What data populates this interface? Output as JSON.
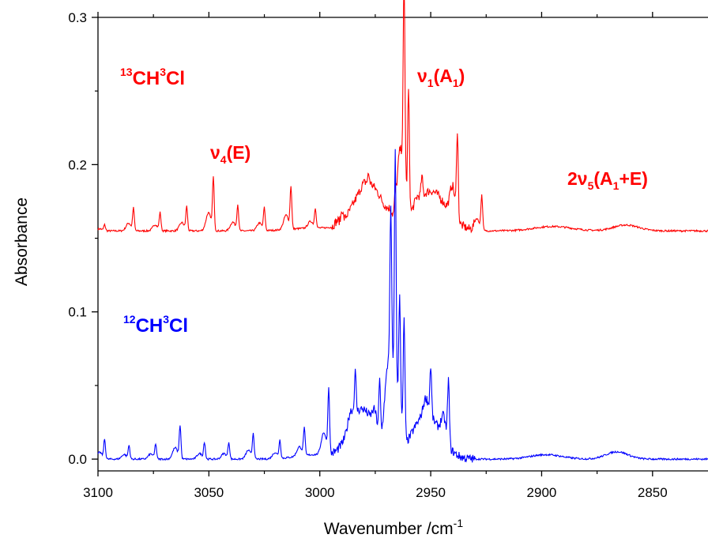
{
  "chart_data": {
    "type": "line",
    "title": "",
    "xlabel": "Wavenumber /cm",
    "xlabel_sup": "-1",
    "ylabel": "Absorbance",
    "xlim": [
      3100,
      2825
    ],
    "ylim": [
      -0.008,
      0.3
    ],
    "x_reversed": true,
    "x_ticks": [
      3100,
      3050,
      3000,
      2950,
      2900,
      2850
    ],
    "x_tick_labels": [
      "3100",
      "3050",
      "3000",
      "2950",
      "2900",
      "2850"
    ],
    "y_ticks": [
      0.0,
      0.1,
      0.2,
      0.3
    ],
    "y_tick_labels": [
      "0.0",
      "0.1",
      "0.2",
      "0.3"
    ],
    "grid": false,
    "series": [
      {
        "name": "13CH3Cl",
        "color": "#ff0000",
        "baseline": 0.155,
        "peaks": [
          {
            "x": 3097,
            "y": 0.159
          },
          {
            "x": 3084,
            "y": 0.17
          },
          {
            "x": 3072,
            "y": 0.167
          },
          {
            "x": 3060,
            "y": 0.171
          },
          {
            "x": 3048,
            "y": 0.19
          },
          {
            "x": 3037,
            "y": 0.172
          },
          {
            "x": 3025,
            "y": 0.17
          },
          {
            "x": 3013,
            "y": 0.183
          },
          {
            "x": 3002,
            "y": 0.168
          },
          {
            "x": 2990,
            "y": 0.163
          },
          {
            "x": 2978,
            "y": 0.161
          },
          {
            "x": 2966,
            "y": 0.167
          },
          {
            "x": 2954,
            "y": 0.168
          },
          {
            "x": 2938,
            "y": 0.214
          },
          {
            "x": 2962,
            "y": 0.284
          },
          {
            "x": 2960,
            "y": 0.236
          },
          {
            "x": 2927,
            "y": 0.178
          }
        ]
      },
      {
        "name": "12CH3Cl",
        "color": "#0000ff",
        "baseline": 0.0,
        "peaks": [
          {
            "x": 3097,
            "y": 0.013
          },
          {
            "x": 3086,
            "y": 0.009
          },
          {
            "x": 3074,
            "y": 0.01
          },
          {
            "x": 3063,
            "y": 0.022
          },
          {
            "x": 3052,
            "y": 0.011
          },
          {
            "x": 3041,
            "y": 0.011
          },
          {
            "x": 3030,
            "y": 0.017
          },
          {
            "x": 3018,
            "y": 0.012
          },
          {
            "x": 3007,
            "y": 0.018
          },
          {
            "x": 2996,
            "y": 0.043
          },
          {
            "x": 2984,
            "y": 0.028
          },
          {
            "x": 2973,
            "y": 0.037
          },
          {
            "x": 2962,
            "y": 0.082
          },
          {
            "x": 2942,
            "y": 0.043
          },
          {
            "x": 2966,
            "y": 0.165
          },
          {
            "x": 2968,
            "y": 0.098
          },
          {
            "x": 2964,
            "y": 0.074
          },
          {
            "x": 2950,
            "y": 0.033
          }
        ]
      }
    ],
    "annotations": [
      {
        "text": "CH",
        "pre_sup": "13",
        "mid_sup": "3",
        "post": "Cl",
        "color": "#ff0000"
      },
      {
        "text": "ν",
        "sub": "4",
        "post": "(E)",
        "color": "#ff0000"
      },
      {
        "text": "ν",
        "sub": "1",
        "post": "(A",
        "sub2": "1",
        "post2": ")",
        "color": "#ff0000"
      },
      {
        "text": "2ν",
        "sub": "5",
        "post": "(A",
        "sub2": "1",
        "post2": "+E)",
        "color": "#ff0000"
      },
      {
        "text": "CH",
        "pre_sup": "12",
        "mid_sup": "3",
        "post": "Cl",
        "color": "#0000ff"
      }
    ]
  }
}
